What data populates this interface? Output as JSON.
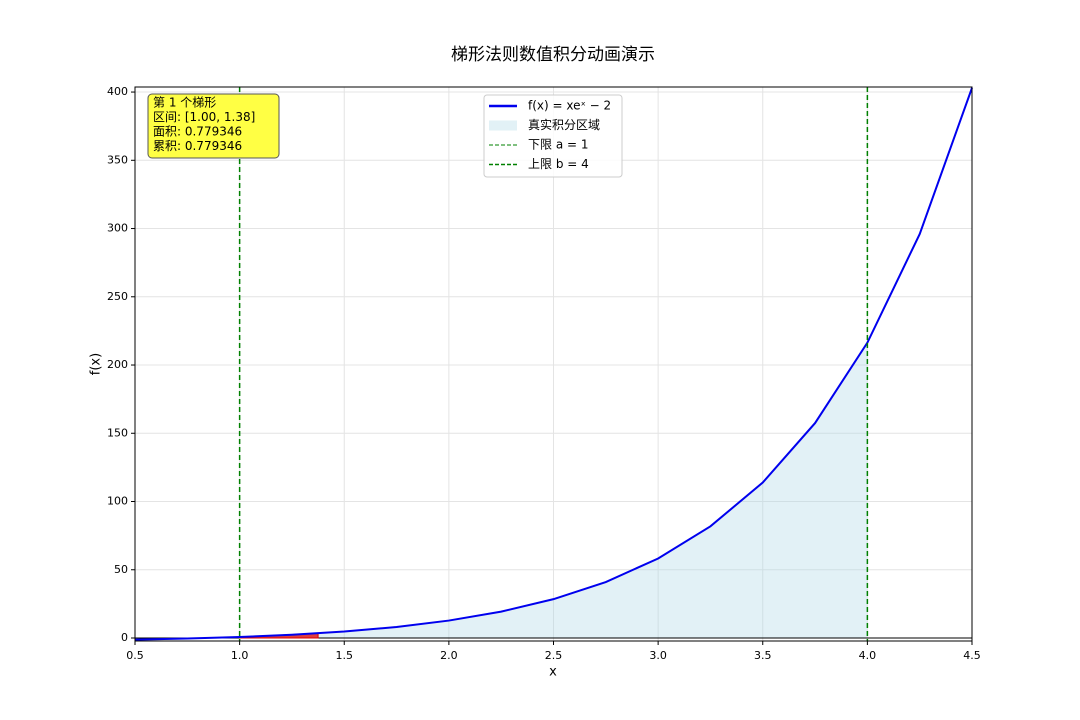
{
  "chart_data": {
    "type": "line",
    "title": "梯形法则数值积分动画演示",
    "xlabel": "x",
    "ylabel": "f(x)",
    "x": [
      0.5,
      0.75,
      1.0,
      1.25,
      1.5,
      1.75,
      2.0,
      2.25,
      2.5,
      2.75,
      3.0,
      3.25,
      3.5,
      3.75,
      4.0,
      4.25,
      4.5
    ],
    "series": [
      {
        "name": "f(x) = xeˣ − 2",
        "color": "#0000ee",
        "values": [
          -1.176,
          -0.412,
          0.718,
          2.363,
          4.723,
          8.071,
          12.778,
          19.347,
          28.456,
          41.017,
          58.257,
          81.819,
          113.904,
          157.454,
          216.393,
          295.946,
          403.076
        ]
      }
    ],
    "area": {
      "name": "真实积分区域",
      "color": "#add8e6"
    },
    "lower": {
      "name": "下限 a = 1",
      "value": 1,
      "color": "#008000"
    },
    "upper": {
      "name": "上限 b = 4",
      "value": 4,
      "color": "#008000"
    },
    "baseline": 0,
    "trapezoid": {
      "x": [
        1.0,
        1.375
      ],
      "values": [
        0.718,
        3.438
      ],
      "color": "#dd0000"
    },
    "info": [
      "第 1 个梯形",
      "区间: [1.00, 1.38]",
      "面积: 0.779346",
      "累积: 0.779346"
    ],
    "xlim": [
      0.5,
      4.5
    ],
    "ylim": [
      -2.2,
      403.7
    ],
    "xticks": [
      0.5,
      {
        "value": 1,
        "label": "1.0"
      },
      1.5,
      {
        "value": 2,
        "label": "2.0"
      },
      2.5,
      {
        "value": 3,
        "label": "3.0"
      },
      3.5,
      {
        "value": 4,
        "label": "4.0"
      },
      4.5
    ],
    "yticks": [
      0,
      50,
      100,
      150,
      200,
      250,
      300,
      350,
      400
    ],
    "grid": true,
    "legend": "upper center"
  }
}
